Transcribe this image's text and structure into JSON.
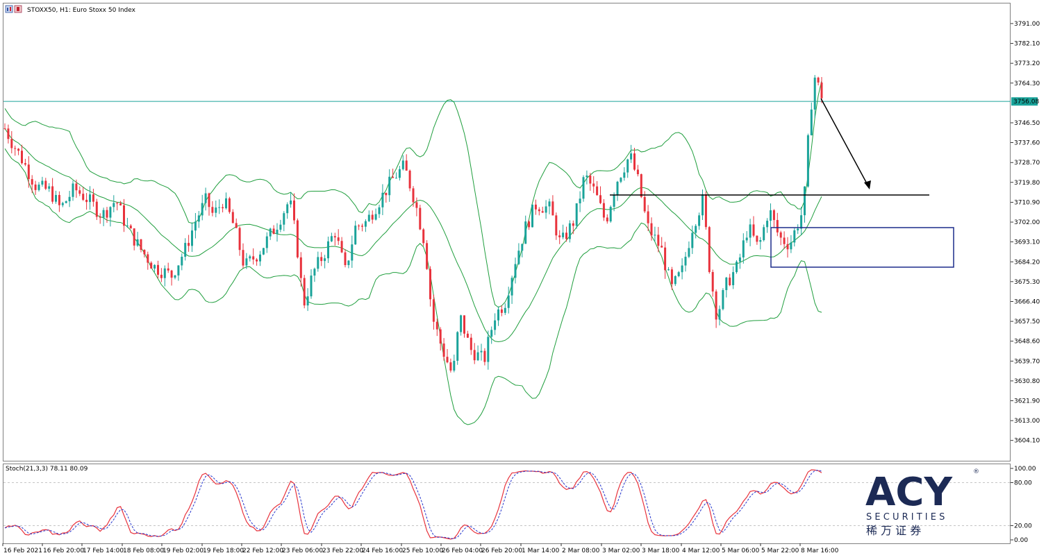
{
  "header": {
    "symbol_line": "STOXX50, H1:  Euro Stoxx 50 Index",
    "icon": "chart-window-icon"
  },
  "main_chart": {
    "ylim": [
      3595,
      3800
    ],
    "price_ticks": [
      "3791.00",
      "3782.10",
      "3773.20",
      "3764.30",
      "3746.50",
      "3737.60",
      "3728.70",
      "3719.80",
      "3710.90",
      "3702.00",
      "3693.10",
      "3684.20",
      "3675.30",
      "3666.40",
      "3657.50",
      "3648.60",
      "3639.70",
      "3630.80",
      "3621.90",
      "3613.00",
      "3604.10"
    ],
    "current_price_label": "3756.08",
    "current_price": 3756.08,
    "current_price_color": "#1aa39a",
    "bollinger_color": "#1f9e3d",
    "bull_color": "#1aa39a",
    "bear_color": "#e8323c",
    "horizontal_level": 3713.5,
    "zone_rect_color": "#1b2b8a"
  },
  "stochastic": {
    "label": "Stoch(21,3,3) 78.11 80.09",
    "levels": [
      "100.00",
      "80.00",
      "20.00",
      "0.00"
    ],
    "main_color": "#e8323c",
    "signal_color": "#2233cc"
  },
  "time_axis": [
    "16 Feb 2021",
    "16 Feb 20:00",
    "17 Feb 14:00",
    "18 Feb 08:00",
    "19 Feb 02:00",
    "19 Feb 18:00",
    "22 Feb 12:00",
    "23 Feb 06:00",
    "23 Feb 22:00",
    "24 Feb 16:00",
    "25 Feb 10:00",
    "26 Feb 04:00",
    "26 Feb 20:00",
    "1 Mar 14:00",
    "2 Mar 08:00",
    "3 Mar 02:00",
    "3 Mar 18:00",
    "4 Mar 12:00",
    "5 Mar 06:00",
    "5 Mar 22:00",
    "8 Mar 16:00"
  ],
  "logo": {
    "text": "ACY",
    "registered": "®",
    "subtitle": "S E C U R I T I E S",
    "chinese": "稀  万  证  券",
    "color": "#1c2a55"
  },
  "chart_data": {
    "type": "candlestick",
    "title": "STOXX50, H1:  Euro Stoxx 50 Index",
    "close_path": [
      [
        0,
        3744
      ],
      [
        10,
        3738
      ],
      [
        25,
        3730
      ],
      [
        45,
        3718
      ],
      [
        65,
        3716
      ],
      [
        80,
        3708
      ],
      [
        100,
        3717
      ],
      [
        120,
        3712
      ],
      [
        140,
        3705
      ],
      [
        160,
        3712
      ],
      [
        175,
        3700
      ],
      [
        195,
        3690
      ],
      [
        215,
        3682
      ],
      [
        240,
        3678
      ],
      [
        260,
        3690
      ],
      [
        275,
        3703
      ],
      [
        290,
        3712
      ],
      [
        300,
        3705
      ],
      [
        315,
        3712
      ],
      [
        330,
        3700
      ],
      [
        345,
        3682
      ],
      [
        365,
        3688
      ],
      [
        390,
        3700
      ],
      [
        410,
        3712
      ],
      [
        420,
        3693
      ],
      [
        430,
        3665
      ],
      [
        445,
        3680
      ],
      [
        460,
        3688
      ],
      [
        475,
        3698
      ],
      [
        490,
        3680
      ],
      [
        505,
        3700
      ],
      [
        520,
        3702
      ],
      [
        540,
        3712
      ],
      [
        560,
        3722
      ],
      [
        575,
        3727
      ],
      [
        590,
        3712
      ],
      [
        605,
        3692
      ],
      [
        615,
        3660
      ],
      [
        630,
        3645
      ],
      [
        645,
        3633
      ],
      [
        655,
        3660
      ],
      [
        670,
        3645
      ],
      [
        690,
        3640
      ],
      [
        705,
        3660
      ],
      [
        720,
        3666
      ],
      [
        735,
        3685
      ],
      [
        750,
        3700
      ],
      [
        765,
        3710
      ],
      [
        785,
        3708
      ],
      [
        800,
        3692
      ],
      [
        820,
        3703
      ],
      [
        835,
        3723
      ],
      [
        850,
        3715
      ],
      [
        865,
        3702
      ],
      [
        880,
        3720
      ],
      [
        900,
        3732
      ],
      [
        912,
        3720
      ],
      [
        925,
        3700
      ],
      [
        945,
        3690
      ],
      [
        960,
        3672
      ],
      [
        975,
        3680
      ],
      [
        990,
        3700
      ],
      [
        1005,
        3712
      ],
      [
        1015,
        3680
      ],
      [
        1025,
        3660
      ],
      [
        1040,
        3675
      ],
      [
        1055,
        3682
      ],
      [
        1070,
        3700
      ],
      [
        1085,
        3690
      ],
      [
        1100,
        3708
      ],
      [
        1115,
        3695
      ],
      [
        1130,
        3692
      ],
      [
        1140,
        3700
      ],
      [
        1150,
        3708
      ],
      [
        1158,
        3745
      ],
      [
        1165,
        3768
      ],
      [
        1172,
        3762
      ],
      [
        1180,
        3756
      ]
    ]
  }
}
